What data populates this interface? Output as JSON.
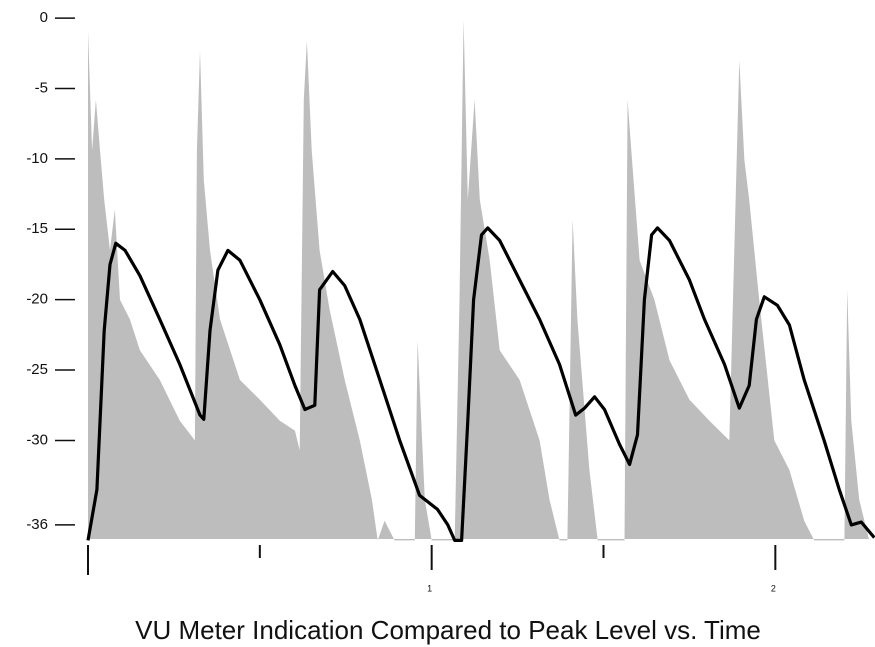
{
  "chart_data": {
    "type": "line",
    "title": "VU Meter Indication Compared to Peak Level vs. Time",
    "ylim": [
      -37,
      1
    ],
    "yticks": [
      0,
      -5,
      -10,
      -15,
      -20,
      -25,
      -30,
      -36
    ],
    "xlim": [
      0,
      2.29
    ],
    "x_major_ticks": [
      1,
      2
    ],
    "x_minor_ticks": [
      0,
      0.5,
      1.5
    ],
    "series": [
      {
        "type": "area",
        "color": "#bdbdbd",
        "x": [
          0,
          0,
          0.012,
          0.023,
          0.035,
          0.047,
          0.064,
          0.078,
          0.093,
          0.122,
          0.151,
          0.209,
          0.267,
          0.311,
          0.317,
          0.326,
          0.337,
          0.355,
          0.384,
          0.442,
          0.5,
          0.558,
          0.602,
          0.616,
          0.628,
          0.637,
          0.651,
          0.674,
          0.703,
          0.747,
          0.791,
          0.826,
          0.843,
          0.863,
          0.892,
          0.951,
          0.959,
          0.98,
          1.0,
          1.067,
          1.081,
          1.093,
          1.105,
          1.125,
          1.14,
          1.169,
          1.198,
          1.256,
          1.314,
          1.343,
          1.372,
          1.395,
          1.41,
          1.424,
          1.459,
          1.483,
          1.517,
          1.561,
          1.57,
          1.581,
          1.605,
          1.648,
          1.692,
          1.75,
          1.808,
          1.866,
          1.895,
          1.91,
          1.924,
          1.953,
          1.997,
          2.041,
          2.084,
          2.113,
          2.201,
          2.209,
          2.221,
          2.244,
          2.273
        ],
        "values": [
          -37.1,
          -0.9,
          -9.4,
          -5.8,
          -9.4,
          -12.9,
          -16.5,
          -13.6,
          -20.0,
          -21.4,
          -23.6,
          -25.7,
          -28.6,
          -30.0,
          -9.4,
          -2.3,
          -11.5,
          -16.5,
          -21.4,
          -25.7,
          -27.1,
          -28.6,
          -29.3,
          -30.7,
          -5.8,
          -1.6,
          -9.4,
          -16.5,
          -20.7,
          -25.7,
          -30.0,
          -34.2,
          -37.1,
          -35.7,
          -37.1,
          -37.1,
          -22.9,
          -34.2,
          -37.1,
          -37.1,
          -20.0,
          -0.1,
          -12.9,
          -5.8,
          -12.9,
          -17.2,
          -23.6,
          -25.7,
          -30.0,
          -34.2,
          -37.1,
          -37.1,
          -14.3,
          -21.4,
          -32.1,
          -37.1,
          -37.1,
          -37.1,
          -5.8,
          -9.4,
          -17.2,
          -20.0,
          -24.3,
          -27.1,
          -28.6,
          -30.0,
          -3.0,
          -10.1,
          -12.9,
          -20.0,
          -30.0,
          -32.1,
          -35.7,
          -37.1,
          -37.1,
          -19.3,
          -28.6,
          -34.2,
          -37.1
        ]
      },
      {
        "type": "line",
        "color": "#000000",
        "x": [
          0,
          0.026,
          0.047,
          0.064,
          0.081,
          0.108,
          0.151,
          0.209,
          0.267,
          0.326,
          0.337,
          0.355,
          0.378,
          0.407,
          0.442,
          0.5,
          0.558,
          0.602,
          0.631,
          0.66,
          0.674,
          0.712,
          0.747,
          0.791,
          0.849,
          0.907,
          0.965,
          1.017,
          1.047,
          1.067,
          1.087,
          1.105,
          1.122,
          1.145,
          1.163,
          1.198,
          1.256,
          1.314,
          1.372,
          1.419,
          1.445,
          1.474,
          1.503,
          1.547,
          1.576,
          1.599,
          1.619,
          1.64,
          1.657,
          1.692,
          1.75,
          1.794,
          1.852,
          1.895,
          1.924,
          1.945,
          1.968,
          2.006,
          2.041,
          2.084,
          2.142,
          2.186,
          2.221,
          2.25,
          2.288
        ],
        "values": [
          -37.1,
          -33.5,
          -22.2,
          -17.5,
          -16.0,
          -16.5,
          -18.3,
          -21.4,
          -24.6,
          -28.2,
          -28.5,
          -22.2,
          -17.9,
          -16.5,
          -17.2,
          -20.0,
          -23.2,
          -26.1,
          -27.8,
          -27.5,
          -19.3,
          -18.0,
          -19.0,
          -21.4,
          -25.7,
          -30.0,
          -33.9,
          -34.9,
          -36.0,
          -37.1,
          -37.1,
          -28.6,
          -20.0,
          -15.4,
          -14.9,
          -15.8,
          -18.6,
          -21.4,
          -24.6,
          -28.2,
          -27.7,
          -26.9,
          -27.8,
          -30.3,
          -31.7,
          -29.6,
          -20.0,
          -15.4,
          -14.9,
          -15.8,
          -18.6,
          -21.4,
          -24.6,
          -27.7,
          -26.1,
          -21.4,
          -19.8,
          -20.4,
          -21.8,
          -25.7,
          -30.0,
          -33.5,
          -36.0,
          -35.8,
          -36.9
        ]
      }
    ]
  }
}
